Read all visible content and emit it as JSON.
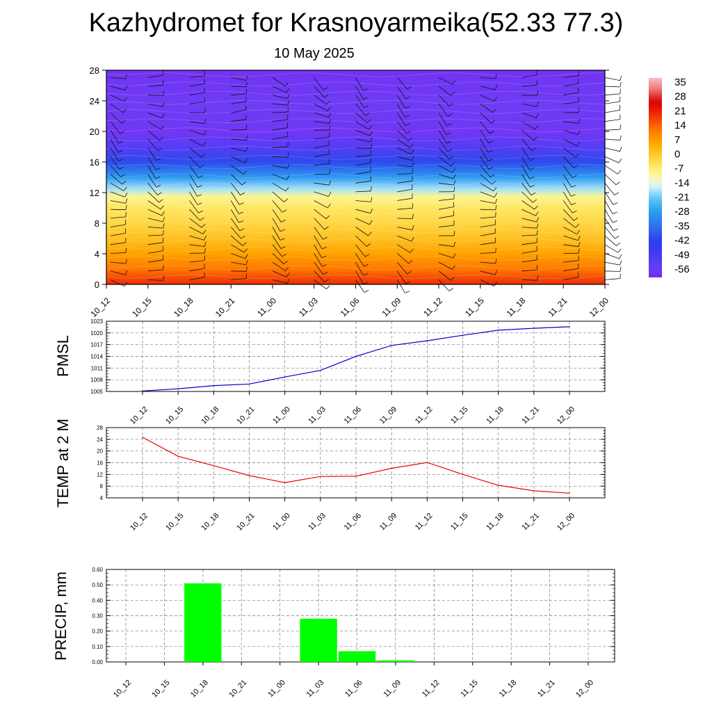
{
  "header": {
    "title": "Kazhydromet for Krasnoyarmeika(52.33 77.3)",
    "date": "10 May 2025"
  },
  "time_labels": [
    "10_12",
    "10_15",
    "10_18",
    "10_21",
    "11_00",
    "11_03",
    "11_06",
    "11_09",
    "11_12",
    "11_15",
    "11_18",
    "11_21",
    "12_00"
  ],
  "colorbar": {
    "labels": [
      "35",
      "28",
      "21",
      "14",
      "7",
      "0",
      "-7",
      "-14",
      "-21",
      "-28",
      "-35",
      "-42",
      "-49",
      "-56"
    ]
  },
  "chart_data": [
    {
      "type": "heatmap",
      "description_free": true,
      "ylim": [
        0,
        28
      ],
      "yticks": [
        0,
        4,
        8,
        12,
        16,
        20,
        24,
        28
      ],
      "x": [
        "10_12",
        "10_15",
        "10_18",
        "10_21",
        "11_00",
        "11_03",
        "11_06",
        "11_09",
        "11_12",
        "11_15",
        "11_18",
        "11_21",
        "12_00"
      ],
      "colorbar_range": [
        -56,
        35
      ],
      "levels_temperature": [
        {
          "level": 0,
          "value": 22
        },
        {
          "level": 2,
          "value": 14
        },
        {
          "level": 4,
          "value": 8
        },
        {
          "level": 6,
          "value": 3
        },
        {
          "level": 8,
          "value": -1
        },
        {
          "level": 10,
          "value": -4
        },
        {
          "level": 11.5,
          "value": -8
        },
        {
          "level": 12.5,
          "value": -17
        },
        {
          "level": 14,
          "value": -27
        },
        {
          "level": 16,
          "value": -40
        },
        {
          "level": 18,
          "value": -52
        },
        {
          "level": 20,
          "value": -57
        },
        {
          "level": 24,
          "value": -56
        },
        {
          "level": 28,
          "value": -58
        }
      ]
    },
    {
      "type": "line",
      "ylabel": "PMSL",
      "ylim": [
        1005,
        1023
      ],
      "yticks": [
        1005,
        1008,
        1011,
        1014,
        1017,
        1020,
        1023
      ],
      "x": [
        "10_12",
        "10_15",
        "10_18",
        "10_21",
        "11_00",
        "11_03",
        "11_06",
        "11_09",
        "11_12",
        "11_15",
        "11_18",
        "11_21",
        "12_00"
      ],
      "values": [
        1005.1,
        1005.7,
        1006.5,
        1006.9,
        1008.7,
        1010.4,
        1014.0,
        1016.8,
        1018.0,
        1019.4,
        1020.7,
        1021.2,
        1021.6
      ],
      "color": "#0000cc"
    },
    {
      "type": "line",
      "ylabel": "TEMP at 2 M",
      "ylim": [
        4,
        28
      ],
      "yticks": [
        4,
        8,
        12,
        16,
        20,
        24,
        28
      ],
      "x": [
        "10_12",
        "10_15",
        "10_18",
        "10_21",
        "11_00",
        "11_03",
        "11_06",
        "11_09",
        "11_12",
        "11_15",
        "11_18",
        "11_21",
        "12_00"
      ],
      "values": [
        24.7,
        18.2,
        15.0,
        11.6,
        9.2,
        11.3,
        11.4,
        14.1,
        16.1,
        12.0,
        8.3,
        6.4,
        5.6
      ],
      "color": "#ee0000"
    },
    {
      "type": "bar",
      "ylabel": "PRECIP, mm",
      "ylim": [
        0,
        0.6
      ],
      "yticks": [
        "0.00",
        "0.10",
        "0.20",
        "0.30",
        "0.40",
        "0.50",
        "0.60"
      ],
      "categories": [
        "10_12",
        "10_15",
        "10_18",
        "10_21",
        "11_00",
        "11_03",
        "11_06",
        "11_09",
        "11_12",
        "11_15",
        "11_18",
        "11_21",
        "12_00"
      ],
      "values": [
        0,
        0,
        0.51,
        0,
        0,
        0.28,
        0.07,
        0.01,
        0,
        0,
        0,
        0,
        0
      ],
      "color": "#00ff00"
    }
  ]
}
